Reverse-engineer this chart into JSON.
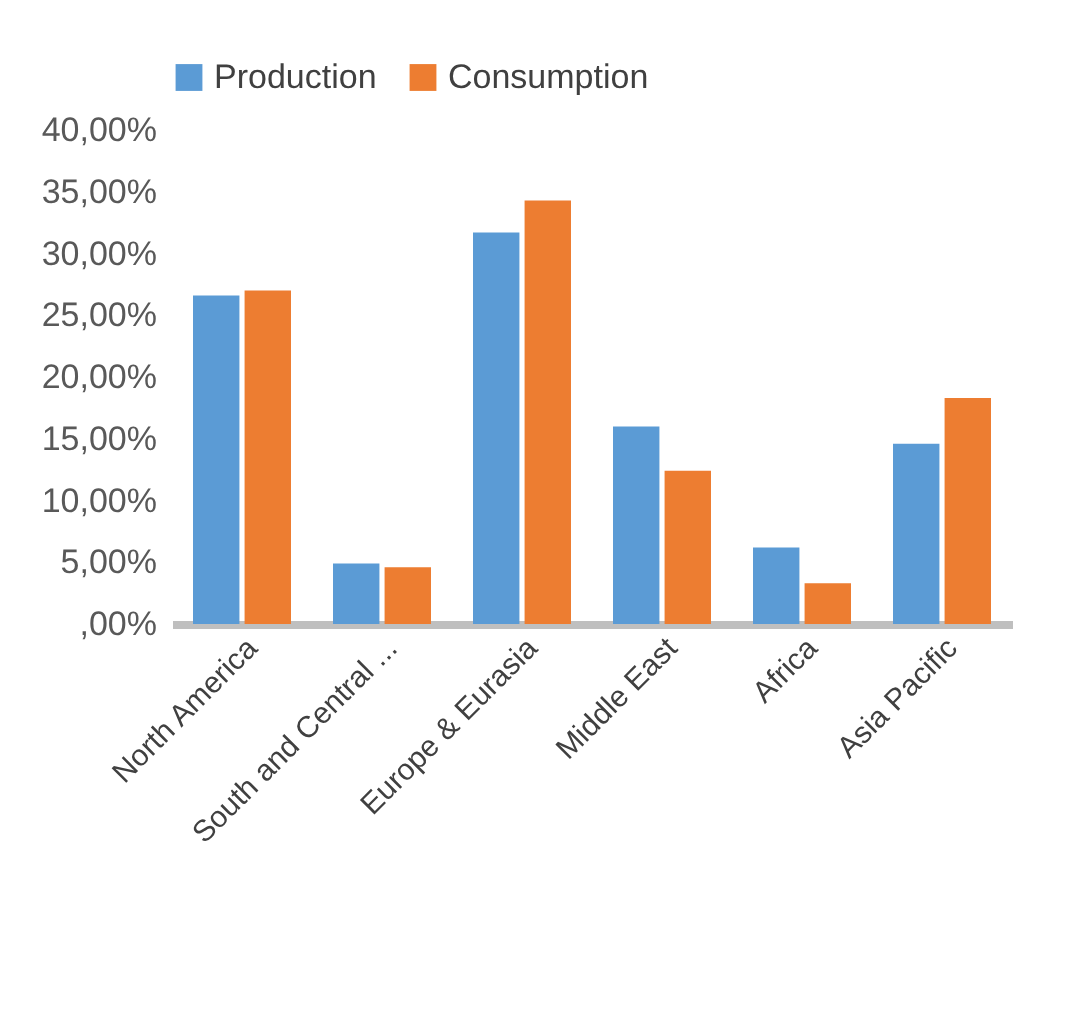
{
  "chart_data": {
    "type": "bar",
    "categories": [
      "North America",
      "South and Central ...",
      "Europe & Eurasia",
      "Middle East",
      "Africa",
      "Asia Pacific"
    ],
    "series": [
      {
        "name": "Production",
        "color": "#5b9bd5",
        "values": [
          26.6,
          4.9,
          31.7,
          16.0,
          6.2,
          14.6
        ]
      },
      {
        "name": "Consumption",
        "color": "#ed7d31",
        "values": [
          27.0,
          4.6,
          34.3,
          12.4,
          3.3,
          18.3
        ]
      }
    ],
    "ylim": [
      0,
      40
    ],
    "yticks": [
      {
        "value": 0,
        "label": ",00%"
      },
      {
        "value": 5,
        "label": "5,00%"
      },
      {
        "value": 10,
        "label": "10,00%"
      },
      {
        "value": 15,
        "label": "15,00%"
      },
      {
        "value": 20,
        "label": "20,00%"
      },
      {
        "value": 25,
        "label": "25,00%"
      },
      {
        "value": 30,
        "label": "30,00%"
      },
      {
        "value": 35,
        "label": "35,00%"
      },
      {
        "value": 40,
        "label": "40,00%"
      }
    ],
    "grid": false,
    "legend": "top"
  }
}
